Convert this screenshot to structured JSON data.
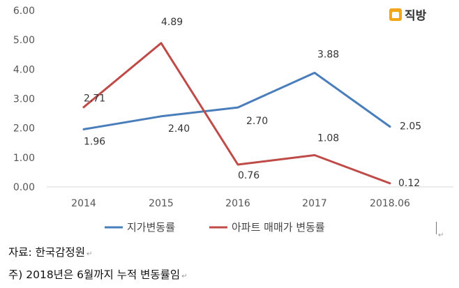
{
  "brand": {
    "name": "직방",
    "icon": "zigbang-house-logo-icon"
  },
  "chart_data": {
    "type": "line",
    "categories": [
      "2014",
      "2015",
      "2016",
      "2017",
      "2018.06"
    ],
    "ylim": [
      0,
      6
    ],
    "yticks": [
      "0.00",
      "1.00",
      "2.00",
      "3.00",
      "4.00",
      "5.00",
      "6.00"
    ],
    "grid": false,
    "legend_position": "bottom",
    "series": [
      {
        "name": "지가변동률",
        "color": "#4a7ebb",
        "values": [
          1.96,
          2.4,
          2.7,
          3.88,
          2.05
        ],
        "labels": [
          "1.96",
          "2.40",
          "2.70",
          "3.88",
          "2.05"
        ]
      },
      {
        "name": "아파트 매매가 변동률",
        "color": "#be4b48",
        "values": [
          2.71,
          4.89,
          0.76,
          1.08,
          0.12
        ],
        "labels": [
          "2.71",
          "4.89",
          "0.76",
          "1.08",
          "0.12"
        ]
      }
    ]
  },
  "notes": {
    "source": "자료: 한국감정원",
    "footnote": "주) 2018년은 6월까지 누적 변동률임"
  },
  "marks": {
    "return_symbol": "↵"
  }
}
